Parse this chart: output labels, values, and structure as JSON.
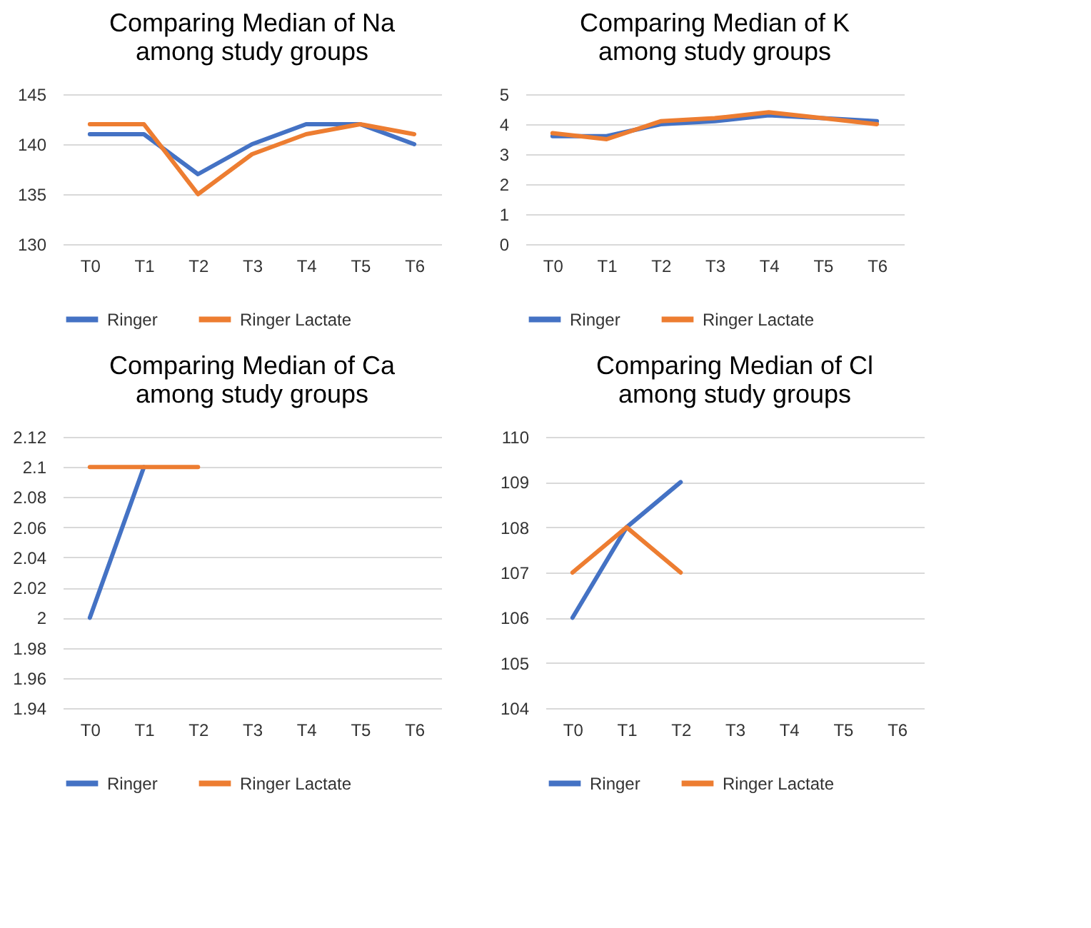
{
  "chart_data": [
    {
      "type": "line",
      "title": "Comparing Median of Na among study groups",
      "categories": [
        "T0",
        "T1",
        "T2",
        "T3",
        "T4",
        "T5",
        "T6"
      ],
      "series": [
        {
          "name": "Ringer",
          "color": "#4472c4",
          "values": [
            141,
            141,
            137,
            140,
            142,
            142,
            140
          ]
        },
        {
          "name": "Ringer Lactate",
          "color": "#ed7d31",
          "values": [
            142,
            142,
            135,
            139,
            141,
            142,
            141
          ]
        }
      ],
      "ylim": [
        130,
        145
      ],
      "yticks": [
        130,
        135,
        140,
        145
      ],
      "grid": "y",
      "legend": "bottom"
    },
    {
      "type": "line",
      "title": "Comparing Median of K among study groups",
      "categories": [
        "T0",
        "T1",
        "T2",
        "T3",
        "T4",
        "T5",
        "T6"
      ],
      "series": [
        {
          "name": "Ringer",
          "color": "#4472c4",
          "values": [
            3.6,
            3.6,
            4.0,
            4.1,
            4.3,
            4.2,
            4.1
          ]
        },
        {
          "name": "Ringer Lactate",
          "color": "#ed7d31",
          "values": [
            3.7,
            3.5,
            4.1,
            4.2,
            4.4,
            4.2,
            4.0
          ]
        }
      ],
      "ylim": [
        0,
        5
      ],
      "yticks": [
        0,
        1,
        2,
        3,
        4,
        5
      ],
      "grid": "y",
      "legend": "bottom"
    },
    {
      "type": "line",
      "title": "Comparing Median of Ca among study groups",
      "categories": [
        "T0",
        "T1",
        "T2",
        "T3",
        "T4",
        "T5",
        "T6"
      ],
      "series": [
        {
          "name": "Ringer",
          "color": "#4472c4",
          "values": [
            2,
            2.1,
            null,
            null,
            null,
            null,
            null
          ]
        },
        {
          "name": "Ringer Lactate",
          "color": "#ed7d31",
          "values": [
            2.1,
            2.1,
            2.1,
            null,
            null,
            null,
            null
          ]
        }
      ],
      "ylim": [
        1.94,
        2.12
      ],
      "yticks": [
        1.94,
        1.96,
        1.98,
        2,
        2.02,
        2.04,
        2.06,
        2.08,
        2.1,
        2.12
      ],
      "grid": "y",
      "legend": "bottom"
    },
    {
      "type": "line",
      "title": "Comparing Median of Cl among study groups",
      "categories": [
        "T0",
        "T1",
        "T2",
        "T3",
        "T4",
        "T5",
        "T6"
      ],
      "series": [
        {
          "name": "Ringer",
          "color": "#4472c4",
          "values": [
            106,
            108,
            109,
            null,
            null,
            null,
            null
          ]
        },
        {
          "name": "Ringer Lactate",
          "color": "#ed7d31",
          "values": [
            107,
            108,
            107,
            null,
            null,
            null,
            null
          ]
        }
      ],
      "ylim": [
        104,
        110
      ],
      "yticks": [
        104,
        105,
        106,
        107,
        108,
        109,
        110
      ],
      "grid": "y",
      "legend": "bottom"
    }
  ]
}
